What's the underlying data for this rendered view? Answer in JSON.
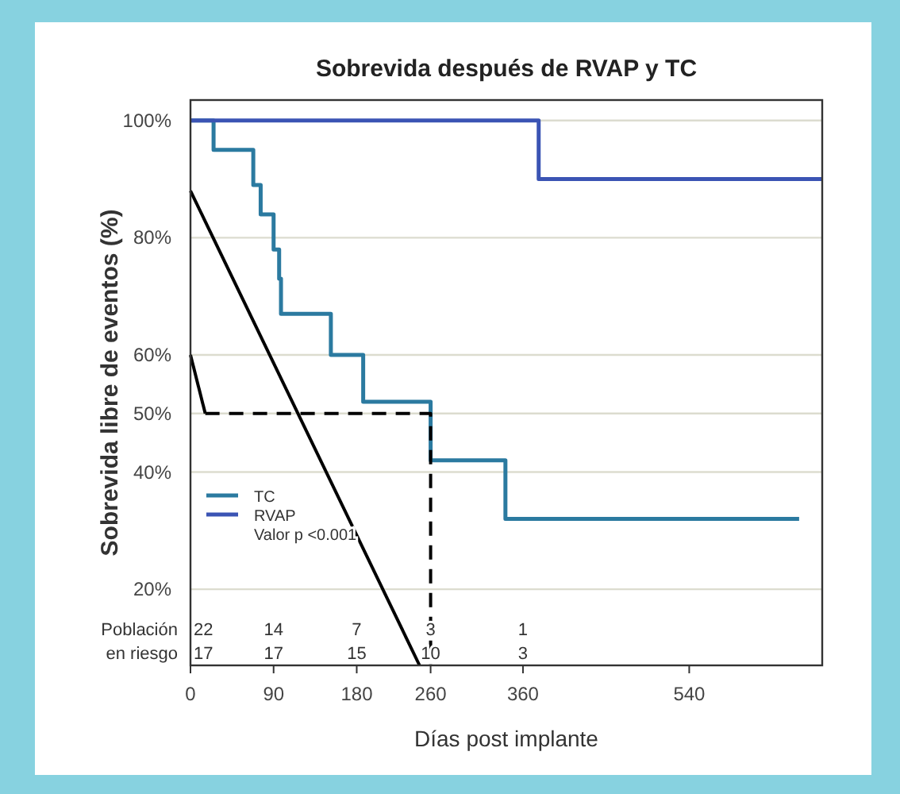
{
  "chart_data": {
    "type": "step",
    "title": "Sobrevida después de RVAP y TC",
    "xlabel": "Días post implante",
    "ylabel": "Sobrevida libre de eventos (%)",
    "xlim": [
      0,
      684
    ],
    "xticks": [
      0,
      90,
      180,
      260,
      360,
      540
    ],
    "ylim": [
      7,
      103.5
    ],
    "yticks": [
      {
        "value": 20,
        "label": "20%"
      },
      {
        "value": 40,
        "label": "40%"
      },
      {
        "value": 50,
        "label": "50%"
      },
      {
        "value": 60,
        "label": "60%"
      },
      {
        "value": 80,
        "label": "80%"
      },
      {
        "value": 100,
        "label": "100%"
      }
    ],
    "grid": "y",
    "legend": "left",
    "series": [
      {
        "name": "TC",
        "type": "step",
        "color": "#2b7aa0",
        "x": [
          0,
          25,
          68,
          76,
          90,
          96,
          98,
          152,
          187,
          260,
          341,
          659
        ],
        "values": [
          100,
          95,
          89,
          84,
          78,
          73,
          67,
          60,
          52,
          42,
          32,
          32
        ]
      },
      {
        "name": "RVAP",
        "type": "step",
        "color": "#3b54b4",
        "x": [
          0,
          377,
          684
        ],
        "values": [
          100,
          90,
          90
        ]
      },
      {
        "type": "line",
        "color": "#000000",
        "x": [
          0,
          248
        ],
        "values": [
          88,
          7
        ]
      },
      {
        "type": "line",
        "color": "#000000",
        "x": [
          0,
          16
        ],
        "values": [
          60,
          50
        ]
      },
      {
        "type": "line",
        "color": "#000000",
        "line_style": "dashed",
        "x": [
          16,
          260,
          260
        ],
        "values": [
          50,
          50,
          7
        ]
      }
    ],
    "annotations": [
      "Valor p <0.001",
      "Población",
      "en riesgo",
      "22",
      "14",
      "7",
      "3",
      "1",
      "17",
      "17",
      "15",
      "10",
      "3"
    ]
  }
}
